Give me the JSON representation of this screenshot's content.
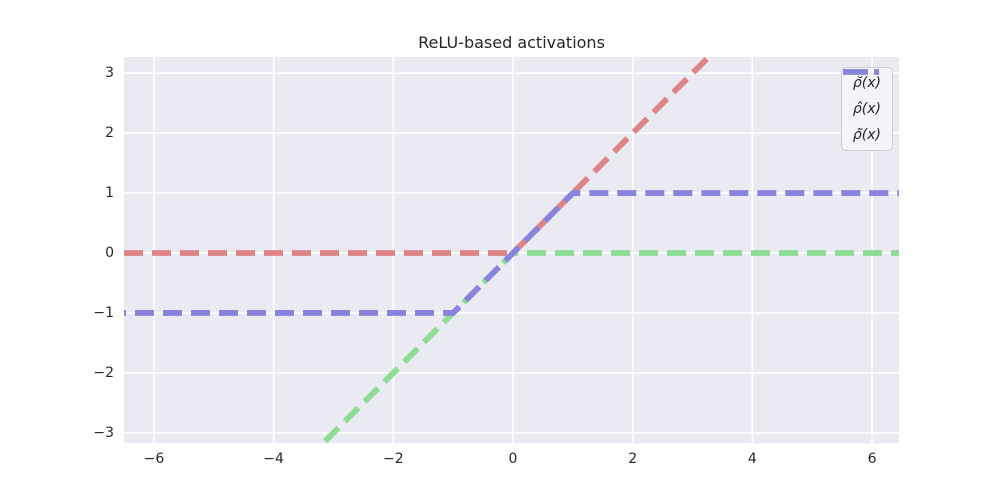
{
  "figure": {
    "background": "#ffffff"
  },
  "chart_data": {
    "type": "line",
    "title": "ReLU-based activations",
    "xlabel": "",
    "ylabel": "",
    "xlim": [
      -6.5,
      6.45
    ],
    "ylim": [
      -3.17,
      3.27
    ],
    "xticks": [
      -6,
      -4,
      -2,
      0,
      2,
      4,
      6
    ],
    "yticks": [
      -3,
      -2,
      -1,
      0,
      1,
      2,
      3
    ],
    "grid": true,
    "grid_color": "#ffffff",
    "plot_bg": "#eaeaf2",
    "tick_color": "#262626",
    "title_color": "#262626",
    "line_style": "dashed",
    "line_width": 5.8,
    "dash_pattern": [
      19,
      9
    ],
    "legend": {
      "position": "upper right",
      "bg": "#f4f4f9",
      "border": "#ccccd6",
      "text_color": "#262626"
    },
    "series": [
      {
        "name": "ρ̆(x)",
        "color": "#de8486",
        "points": [
          [
            -6.5,
            0
          ],
          [
            0,
            0
          ],
          [
            3.4,
            3.4
          ]
        ],
        "dash_offset": 0
      },
      {
        "name": "ρ̂(x)",
        "color": "#8cdc93",
        "points": [
          [
            -3.4,
            -3.4
          ],
          [
            0,
            0
          ],
          [
            6.45,
            0
          ]
        ],
        "dash_offset": 6
      },
      {
        "name": "ρ̃(x)",
        "color": "#8884de",
        "points": [
          [
            -6.5,
            -1
          ],
          [
            -1,
            -1
          ],
          [
            1,
            1
          ],
          [
            6.45,
            1
          ]
        ],
        "dash_offset": 17
      }
    ]
  }
}
